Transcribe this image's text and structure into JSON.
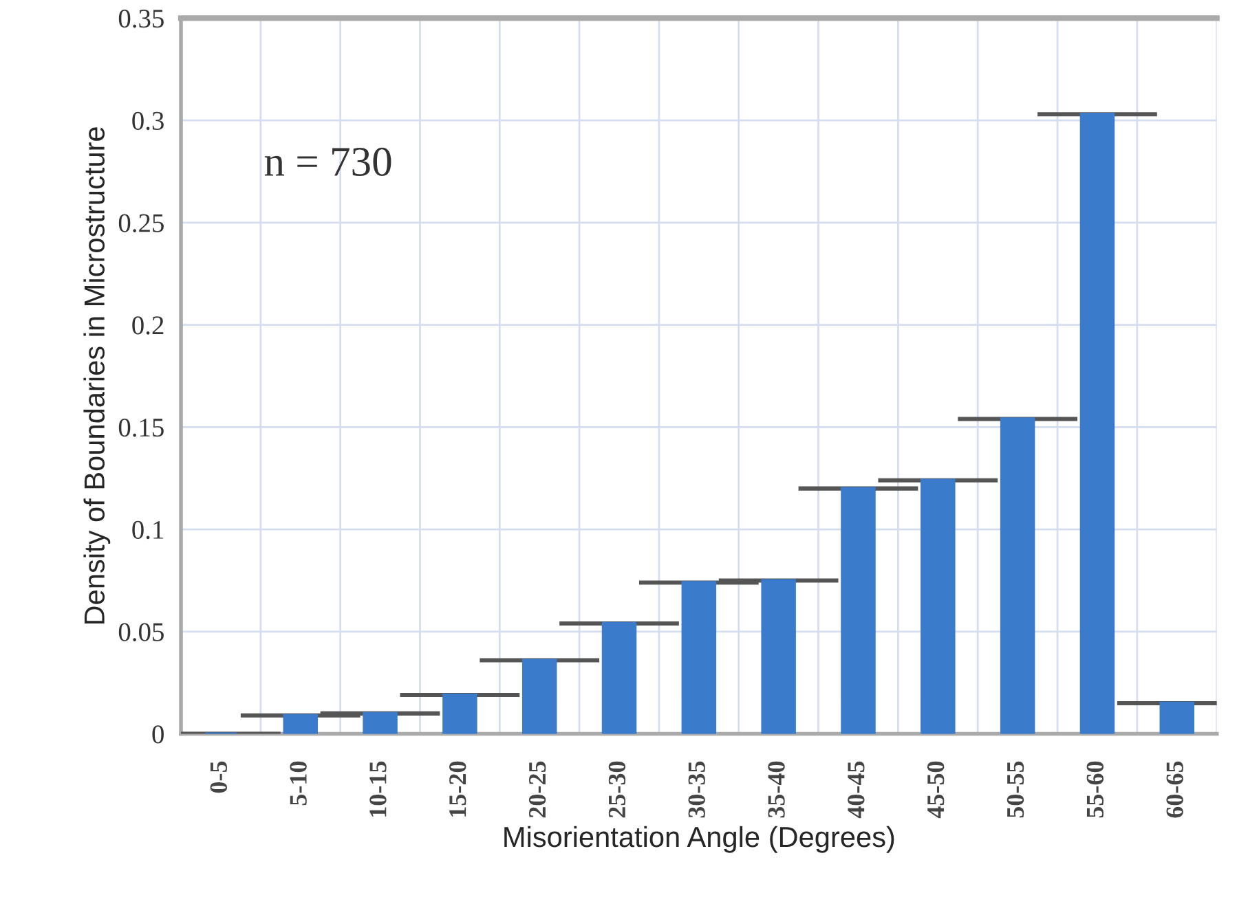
{
  "chart_data": {
    "type": "bar",
    "xlabel": "Misorientation Angle (Degrees)",
    "ylabel": "Density of Boundaries in Microstructure",
    "categories": [
      "0-5",
      "5-10",
      "10-15",
      "15-20",
      "20-25",
      "25-30",
      "30-35",
      "35-40",
      "40-45",
      "45-50",
      "50-55",
      "55-60",
      "60-65"
    ],
    "values": [
      0,
      0.009,
      0.01,
      0.019,
      0.036,
      0.054,
      0.074,
      0.075,
      0.12,
      0.124,
      0.154,
      0.303,
      0.015
    ],
    "color": "#3a7bcb",
    "ylim": [
      0,
      0.35
    ],
    "yticks": [
      0,
      0.05,
      0.1,
      0.15,
      0.2,
      0.25,
      0.3,
      0.35
    ],
    "grid": true,
    "annotations": [
      "n = 730"
    ]
  }
}
